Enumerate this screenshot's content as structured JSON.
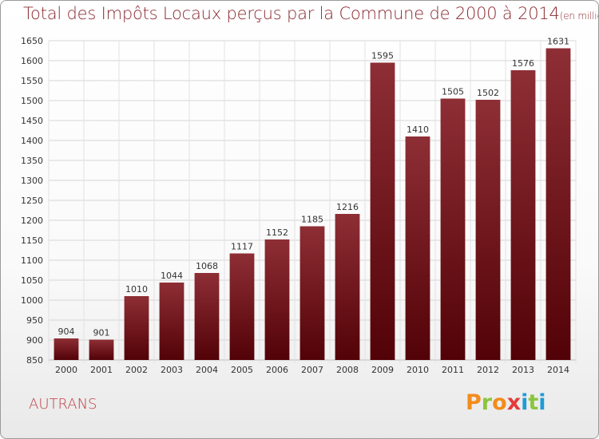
{
  "header": {
    "title": "Total des Impôts Locaux perçus par la Commune de 2000 à 2014",
    "unit": "(en milliers d'€)"
  },
  "footer": {
    "commune": "AUTRANS",
    "logo": {
      "letters": [
        "P",
        "r",
        "o",
        "x",
        "i",
        "t",
        "i"
      ],
      "colors": [
        "#f28c1c",
        "#8bc53f",
        "#f28c1c",
        "#e43b3b",
        "#1e9bd7",
        "#8bc53f",
        "#1e9bd7"
      ]
    }
  },
  "chart_data": {
    "type": "bar",
    "categories": [
      "2000",
      "2001",
      "2002",
      "2003",
      "2004",
      "2005",
      "2006",
      "2007",
      "2008",
      "2009",
      "2010",
      "2011",
      "2012",
      "2013",
      "2014"
    ],
    "values": [
      904,
      901,
      1010,
      1044,
      1068,
      1117,
      1152,
      1185,
      1216,
      1595,
      1410,
      1505,
      1502,
      1576,
      1631
    ],
    "title": "Total des Impôts Locaux perçus par la Commune de 2000 à 2014",
    "ylim": [
      850,
      1650
    ],
    "yticks": [
      850,
      900,
      950,
      1000,
      1050,
      1100,
      1150,
      1200,
      1250,
      1300,
      1350,
      1400,
      1450,
      1500,
      1550,
      1600,
      1650
    ],
    "grid": true,
    "bar_color": "#7a1c22"
  }
}
